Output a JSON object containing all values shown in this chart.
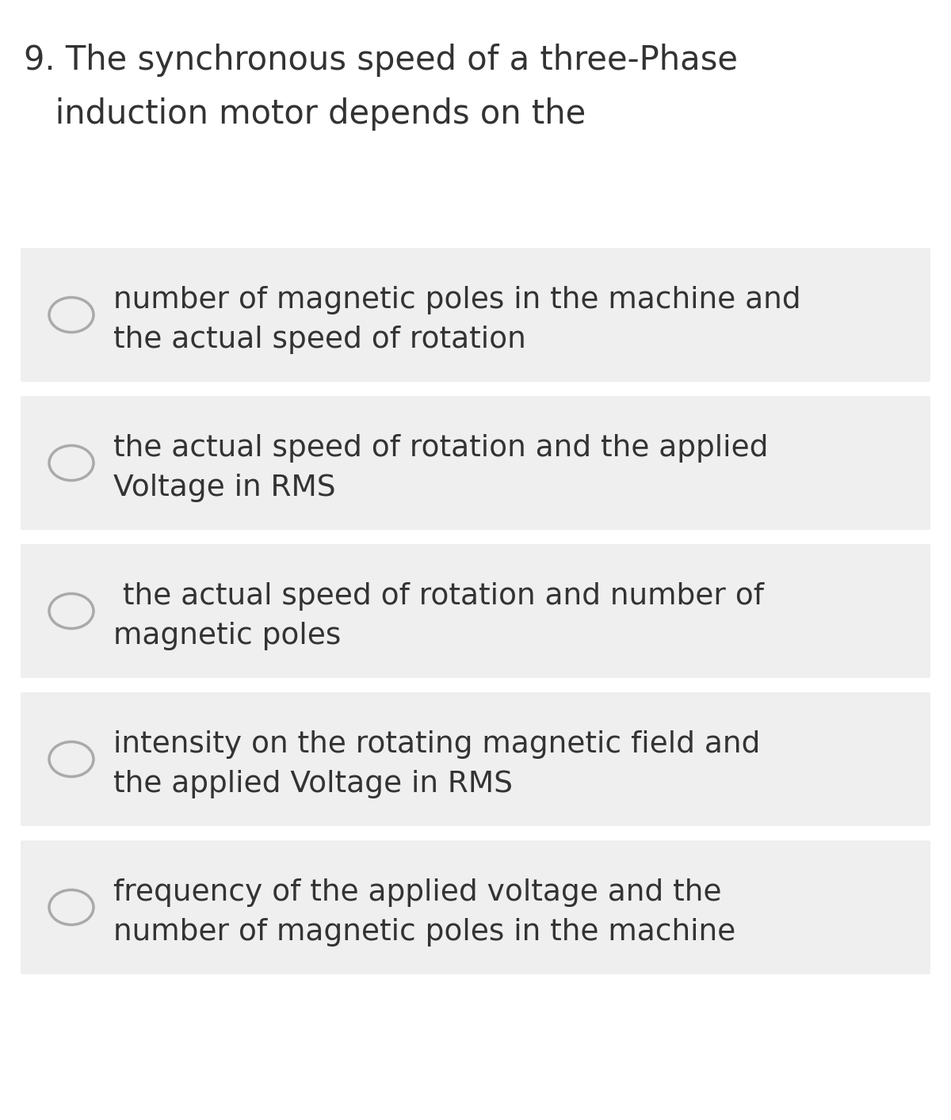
{
  "question_line1": "9. The synchronous speed of a three-Phase",
  "question_line2": "   induction motor depends on the",
  "options": [
    "number of magnetic poles in the machine and\nthe actual speed of rotation",
    "the actual speed of rotation and the applied\nVoltage in RMS",
    " the actual speed of rotation and number of\nmagnetic poles",
    "intensity on the rotating magnetic field and\nthe applied Voltage in RMS",
    "frequency of the applied voltage and the\nnumber of magnetic poles in the machine"
  ],
  "bg_color": "#ffffff",
  "option_bg_color": "#efefef",
  "text_color": "#333333",
  "circle_edge_color": "#aaaaaa",
  "question_fontsize": 30,
  "option_fontsize": 27,
  "fig_width": 12.0,
  "fig_height": 14.14,
  "dpi": 100
}
